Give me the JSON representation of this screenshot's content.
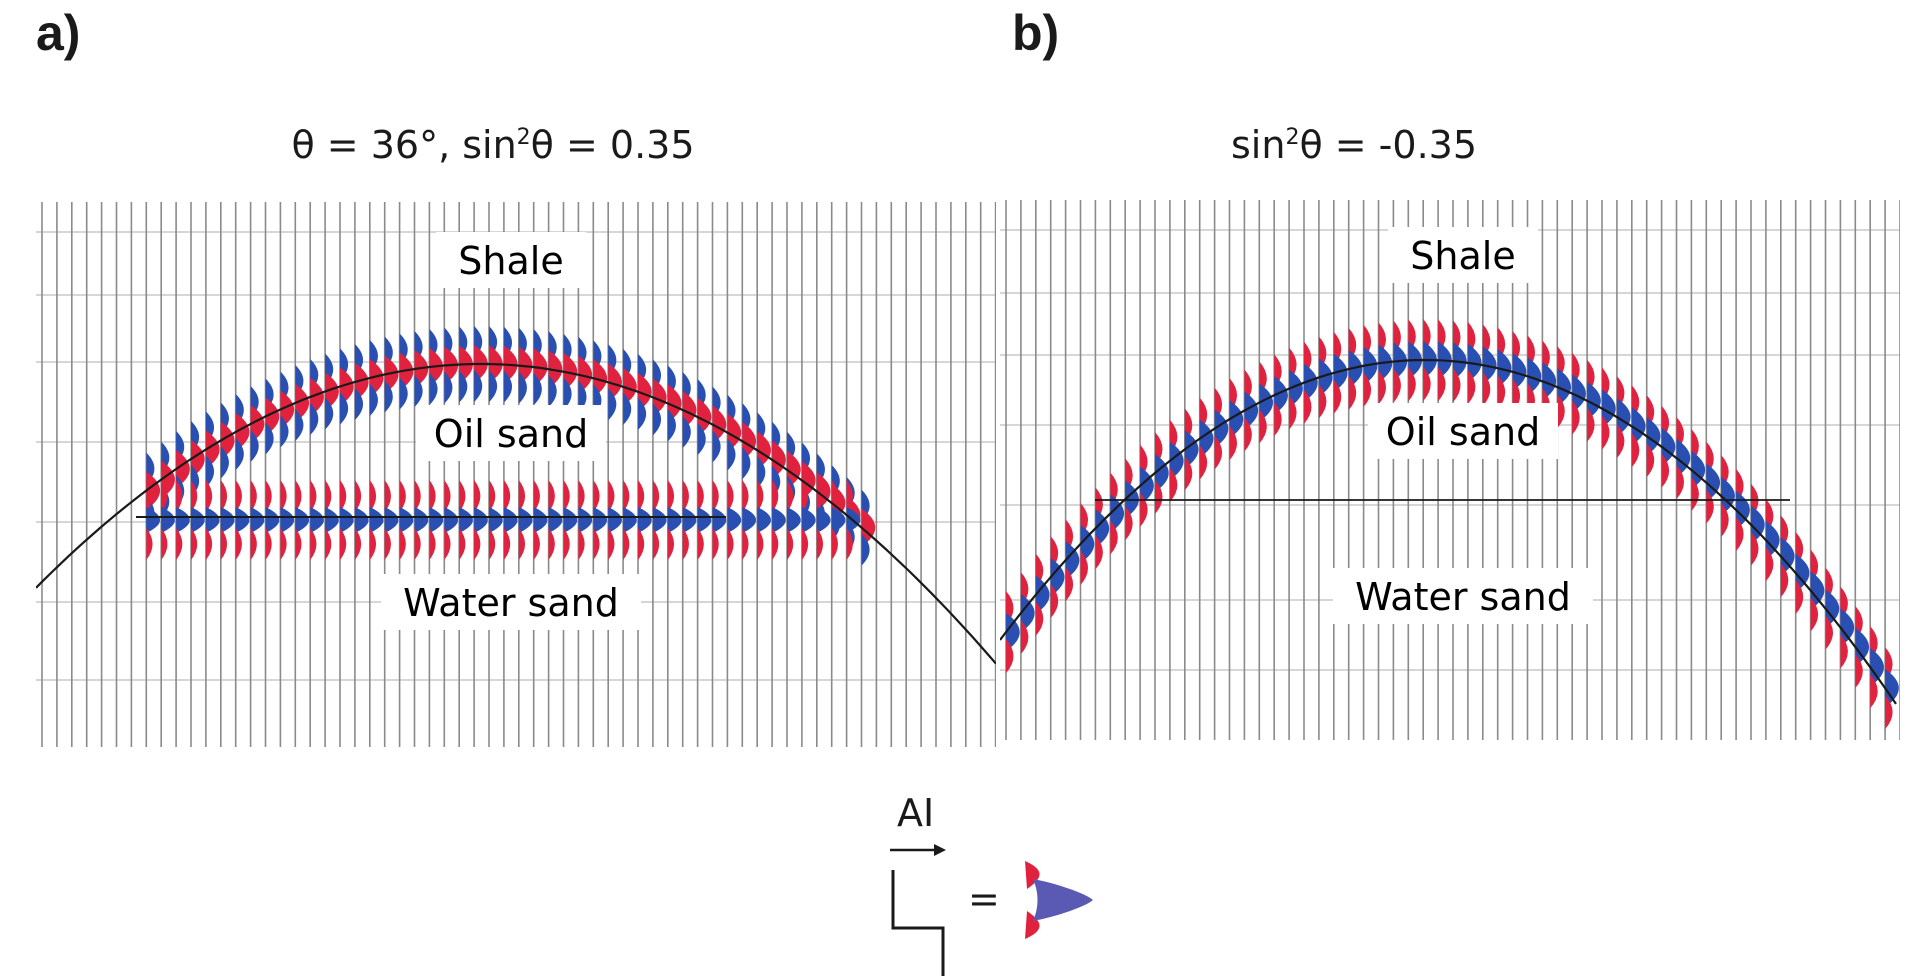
{
  "panels": [
    {
      "letter": "a)",
      "title": {
        "pre": "θ = 36°, sin",
        "sup": "2",
        "post": "θ = 0.35"
      },
      "layers": {
        "top": "Shale",
        "middle": "Oil sand",
        "bottom": "Water sand"
      },
      "polarity": {
        "top_interface": "red",
        "base_interface": "blue"
      }
    },
    {
      "letter": "b)",
      "title": {
        "pre": "sin",
        "sup": "2",
        "post": "θ = -0.35"
      },
      "layers": {
        "top": "Shale",
        "middle": "Oil sand",
        "bottom": "Water sand"
      },
      "polarity": {
        "top_interface": "blue",
        "base_interface": "none"
      }
    }
  ],
  "legend": {
    "label": "AI",
    "equals": "="
  },
  "colors": {
    "red": "#e0223f",
    "blue": "#2a4fb3",
    "legend_blue": "#5a5ab5",
    "grid": "#8a8a8a"
  }
}
